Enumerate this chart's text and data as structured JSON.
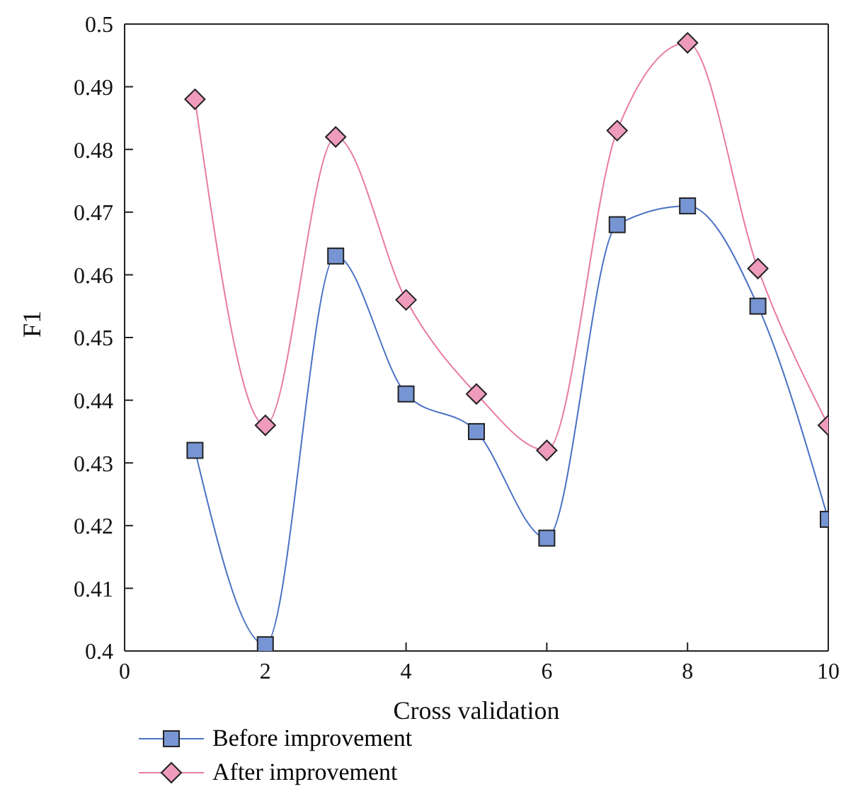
{
  "chart_data": {
    "type": "line",
    "xlabel": "Cross validation",
    "ylabel": "F1",
    "x": [
      1,
      2,
      3,
      4,
      5,
      6,
      7,
      8,
      9,
      10
    ],
    "xlim": [
      0,
      10
    ],
    "xticks": [
      0,
      2,
      4,
      6,
      8,
      10
    ],
    "ylim": [
      0.4,
      0.5
    ],
    "yticks": [
      0.4,
      0.41,
      0.42,
      0.43,
      0.44,
      0.45,
      0.46,
      0.47,
      0.48,
      0.49,
      0.5
    ],
    "grid": false,
    "legend": "bottom left",
    "series": [
      {
        "name": "Before improvement",
        "color": "#4a72c4",
        "marker": "square",
        "values": [
          0.432,
          0.401,
          0.463,
          0.441,
          0.435,
          0.418,
          0.468,
          0.471,
          0.455,
          0.421
        ]
      },
      {
        "name": "After improvement",
        "color": "#e87aa6",
        "marker": "diamond",
        "values": [
          0.488,
          0.436,
          0.482,
          0.456,
          0.441,
          0.432,
          0.483,
          0.497,
          0.461,
          0.436
        ]
      }
    ]
  }
}
